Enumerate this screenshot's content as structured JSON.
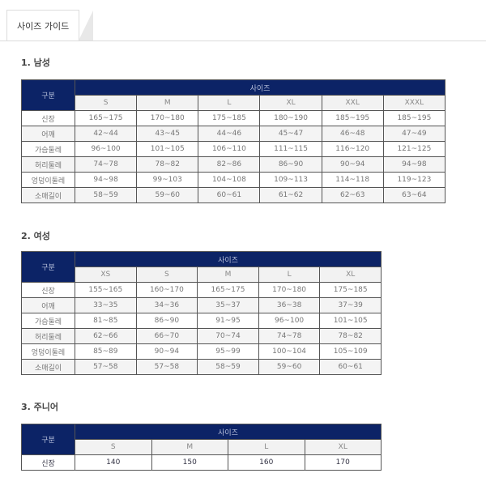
{
  "tab": {
    "label": "사이즈 가이드"
  },
  "sections": [
    {
      "title": "1. 남성",
      "header_label": "구분",
      "group_label": "사이즈",
      "sizes": [
        "S",
        "M",
        "L",
        "XL",
        "XXL",
        "XXXL"
      ],
      "rows": [
        {
          "label": "신장",
          "values": [
            "165~175",
            "170~180",
            "175~185",
            "180~190",
            "185~195",
            "185~195"
          ]
        },
        {
          "label": "어깨",
          "values": [
            "42~44",
            "43~45",
            "44~46",
            "45~47",
            "46~48",
            "47~49"
          ]
        },
        {
          "label": "가슴둘레",
          "values": [
            "96~100",
            "101~105",
            "106~110",
            "111~115",
            "116~120",
            "121~125"
          ]
        },
        {
          "label": "허리둘레",
          "values": [
            "74~78",
            "78~82",
            "82~86",
            "86~90",
            "90~94",
            "94~98"
          ]
        },
        {
          "label": "엉덩이둘레",
          "values": [
            "94~98",
            "99~103",
            "104~108",
            "109~113",
            "114~118",
            "119~123"
          ]
        },
        {
          "label": "소매길이",
          "values": [
            "58~59",
            "59~60",
            "60~61",
            "61~62",
            "62~63",
            "63~64"
          ]
        }
      ]
    },
    {
      "title": "2. 여성",
      "header_label": "구분",
      "group_label": "사이즈",
      "sizes": [
        "XS",
        "S",
        "M",
        "L",
        "XL"
      ],
      "rows": [
        {
          "label": "신장",
          "values": [
            "155~165",
            "160~170",
            "165~175",
            "170~180",
            "175~185"
          ]
        },
        {
          "label": "어깨",
          "values": [
            "33~35",
            "34~36",
            "35~37",
            "36~38",
            "37~39"
          ]
        },
        {
          "label": "가슴둘레",
          "values": [
            "81~85",
            "86~90",
            "91~95",
            "96~100",
            "101~105"
          ]
        },
        {
          "label": "허리둘레",
          "values": [
            "62~66",
            "66~70",
            "70~74",
            "74~78",
            "78~82"
          ]
        },
        {
          "label": "엉덩이둘레",
          "values": [
            "85~89",
            "90~94",
            "95~99",
            "100~104",
            "105~109"
          ]
        },
        {
          "label": "소매길이",
          "values": [
            "57~58",
            "57~58",
            "58~59",
            "59~60",
            "60~61"
          ]
        }
      ]
    },
    {
      "title": "3. 주니어",
      "header_label": "구분",
      "group_label": "사이즈",
      "sizes": [
        "S",
        "M",
        "L",
        "XL"
      ],
      "rows": [
        {
          "label": "신장",
          "values": [
            "140",
            "150",
            "160",
            "170"
          ]
        }
      ]
    }
  ]
}
